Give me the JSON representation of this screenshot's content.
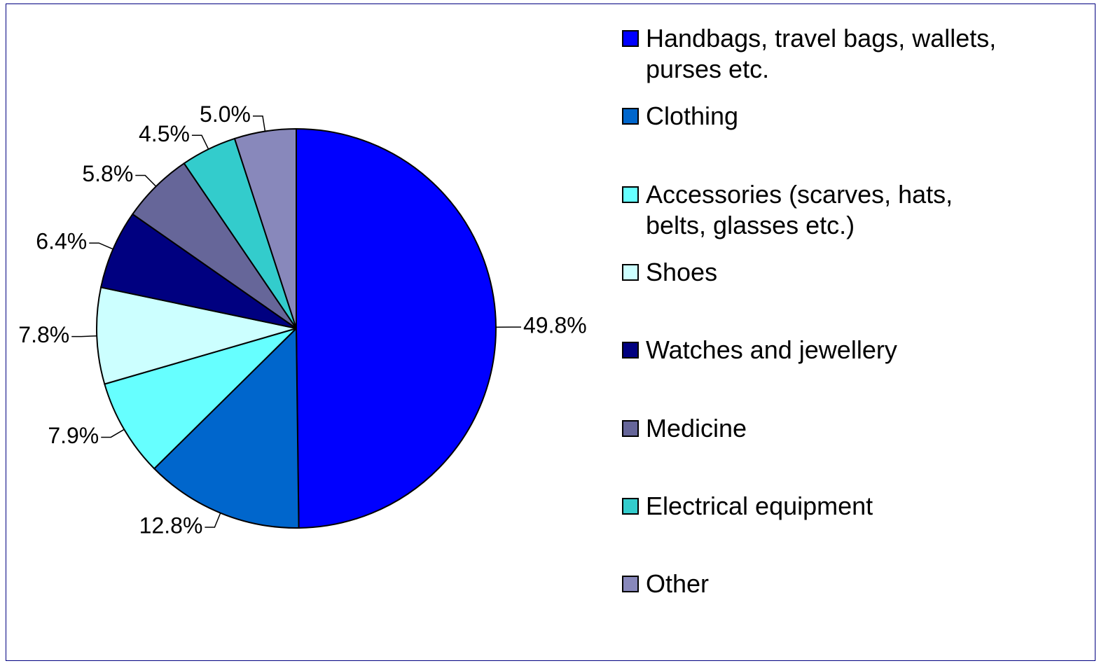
{
  "chart_data": {
    "type": "pie",
    "categories": [
      "Handbags, travel bags, wallets, purses etc.",
      "Clothing",
      "Accessories (scarves, hats, belts, glasses etc.)",
      "Shoes",
      "Watches and jewellery",
      "Medicine",
      "Electrical equipment",
      "Other"
    ],
    "values": [
      49.8,
      12.8,
      7.9,
      7.8,
      6.4,
      5.8,
      4.5,
      5.0
    ],
    "value_labels": [
      "49.8%",
      "12.8%",
      "7.9%",
      "7.8%",
      "6.4%",
      "5.8%",
      "4.5%",
      "5.0%"
    ],
    "colors": [
      "#0000ff",
      "#0066cc",
      "#66ffff",
      "#ccffff",
      "#000080",
      "#666699",
      "#33cccc",
      "#8888bb"
    ],
    "legend": "right"
  }
}
